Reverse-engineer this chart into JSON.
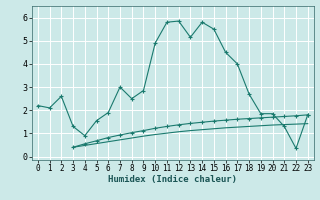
{
  "xlabel": "Humidex (Indice chaleur)",
  "bg_color": "#cce9e8",
  "grid_color": "#ffffff",
  "line_color": "#1a7a6e",
  "xlim": [
    -0.5,
    23.5
  ],
  "ylim": [
    -0.15,
    6.5
  ],
  "xticks": [
    0,
    1,
    2,
    3,
    4,
    5,
    6,
    7,
    8,
    9,
    10,
    11,
    12,
    13,
    14,
    15,
    16,
    17,
    18,
    19,
    20,
    21,
    22,
    23
  ],
  "yticks": [
    0,
    1,
    2,
    3,
    4,
    5,
    6
  ],
  "line1_x": [
    0,
    1,
    2,
    3,
    4,
    5,
    6,
    7,
    8,
    9,
    10,
    11,
    12,
    13,
    14,
    15,
    16,
    17,
    18,
    19,
    20,
    21,
    22,
    23
  ],
  "line1_y": [
    2.2,
    2.1,
    2.6,
    1.3,
    0.9,
    1.55,
    1.9,
    3.0,
    2.5,
    2.85,
    4.9,
    5.8,
    5.85,
    5.15,
    5.8,
    5.5,
    4.5,
    4.0,
    2.7,
    1.85,
    1.85,
    1.3,
    0.35,
    1.8
  ],
  "line2_x": [
    3,
    4,
    5,
    6,
    7,
    8,
    9,
    10,
    11,
    12,
    13,
    14,
    15,
    16,
    17,
    18,
    19,
    20,
    21,
    22,
    23
  ],
  "line2_y": [
    0.4,
    0.55,
    0.68,
    0.82,
    0.93,
    1.03,
    1.12,
    1.22,
    1.3,
    1.37,
    1.43,
    1.48,
    1.53,
    1.57,
    1.61,
    1.64,
    1.67,
    1.7,
    1.73,
    1.76,
    1.8
  ],
  "line3_x": [
    3,
    4,
    5,
    6,
    7,
    8,
    9,
    10,
    11,
    12,
    13,
    14,
    15,
    16,
    17,
    18,
    19,
    20,
    21,
    22,
    23
  ],
  "line3_y": [
    0.4,
    0.48,
    0.56,
    0.64,
    0.72,
    0.8,
    0.88,
    0.95,
    1.01,
    1.07,
    1.12,
    1.16,
    1.2,
    1.24,
    1.27,
    1.3,
    1.33,
    1.36,
    1.38,
    1.4,
    1.42
  ]
}
